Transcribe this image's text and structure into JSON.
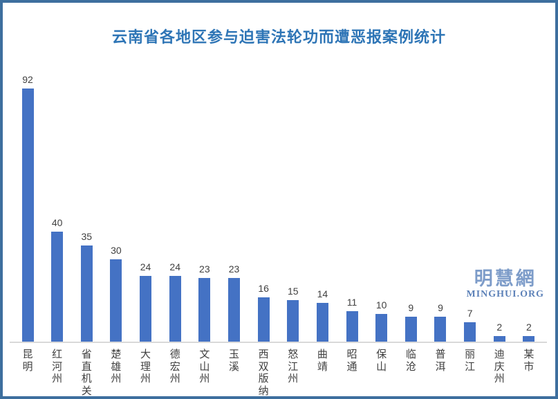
{
  "title": "云南省各地区参与迫害法轮功而遭恶报案例统计",
  "colors": {
    "frame_border": "#3d6f9e",
    "title": "#2e75b6",
    "bar": "#4472c4",
    "value_label": "#404040",
    "category_label": "#404040",
    "axis_line": "#d9d9d9",
    "watermark_cjk": "#7d9cc9",
    "watermark_latin": "#5c81b8",
    "background": "#ffffff"
  },
  "watermark": {
    "cjk": "明慧網",
    "latin": "MINGHUI.ORG"
  },
  "chart_data": {
    "type": "bar",
    "title": "云南省各地区参与迫害法轮功而遭恶报案例统计",
    "categories": [
      "昆明",
      "红河州",
      "省直机关",
      "楚雄州",
      "大理州",
      "德宏州",
      "文山州",
      "玉溪",
      "西双版纳",
      "怒江州",
      "曲靖",
      "昭通",
      "保山",
      "临沧",
      "普洱",
      "丽江",
      "迪庆州",
      "某市"
    ],
    "values": [
      92,
      40,
      35,
      30,
      24,
      24,
      23,
      23,
      16,
      15,
      14,
      11,
      10,
      9,
      9,
      7,
      2,
      2
    ],
    "xlabel": "",
    "ylabel": "",
    "ylim": [
      0,
      100
    ],
    "grid": false,
    "legend": false,
    "value_labels": true,
    "category_label_orientation": "vertical",
    "bar_color": "#4472c4"
  }
}
